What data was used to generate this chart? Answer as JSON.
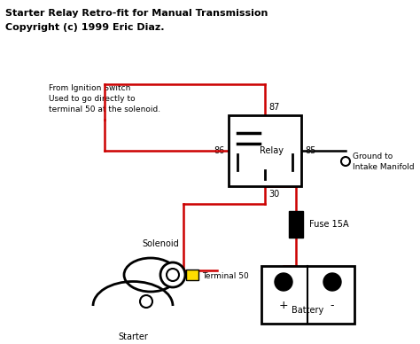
{
  "title_line1": "Starter Relay Retro-fit for Manual Transmission",
  "title_line2": "Copyright (c) 1999 Eric Diaz.",
  "bg_color": "#ffffff",
  "wire_color_red": "#cc0000",
  "wire_color_black": "#000000",
  "ignition_text": [
    "From Ignition Switch",
    "Used to go directly to",
    "terminal 50 at the solenoid."
  ],
  "fuse_label": "Fuse 15A",
  "battery_label": "Battery",
  "solenoid_label": "Solenoid",
  "terminal_label": "Terminal 50",
  "starter_label": "Starter",
  "ground_label": [
    "Ground to",
    "Intake Manifold"
  ],
  "relay_label": "Relay",
  "t87": "87",
  "t86": "86",
  "t85": "85",
  "t30": "30"
}
